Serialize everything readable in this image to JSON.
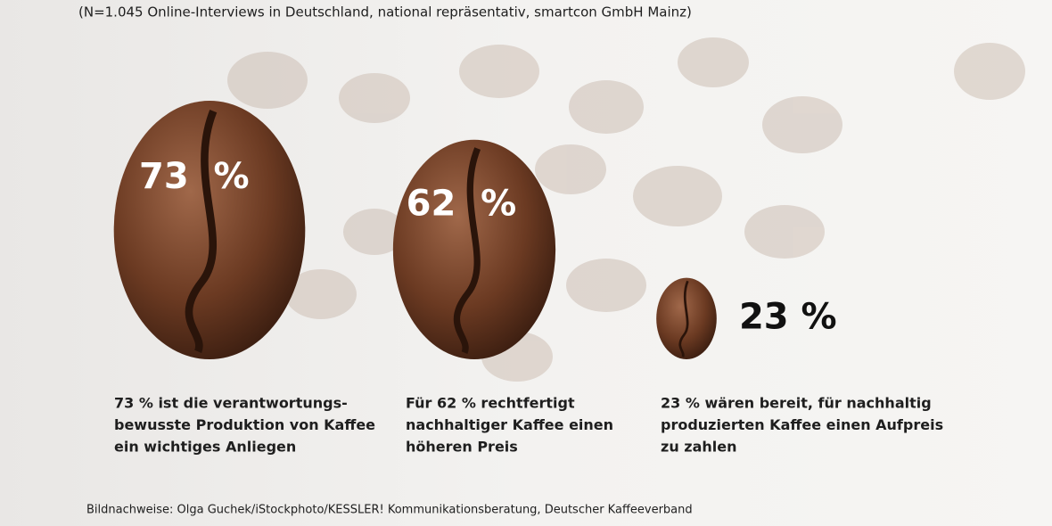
{
  "chart_data": {
    "type": "bean",
    "subtitle": "(N=1.045 Online-Interviews in Deutschland, national repräsentativ, smartcon GmbH Mainz)",
    "values": [
      73,
      62,
      23
    ],
    "value_labels": [
      "73  %",
      "62  %",
      "23 %"
    ],
    "descriptions": [
      [
        "73 % ist die verantwortungs-",
        "bewusste Produktion von Kaffee",
        "ein wichtiges Anliegen"
      ],
      [
        "Für 62 % rechtfertigt",
        "nachhaltiger Kaffee einen",
        "höheren Preis"
      ],
      [
        "23 % wären bereit, für nachhaltig",
        "produzierten Kaffee einen Aufpreis",
        "zu zahlen"
      ]
    ],
    "color": "#6b3a22",
    "source": "Bildnachweise: Olga Guchek/iStockphoto/KESSLER! Kommunikationsberatung, Deutscher Kaffeeverband"
  }
}
